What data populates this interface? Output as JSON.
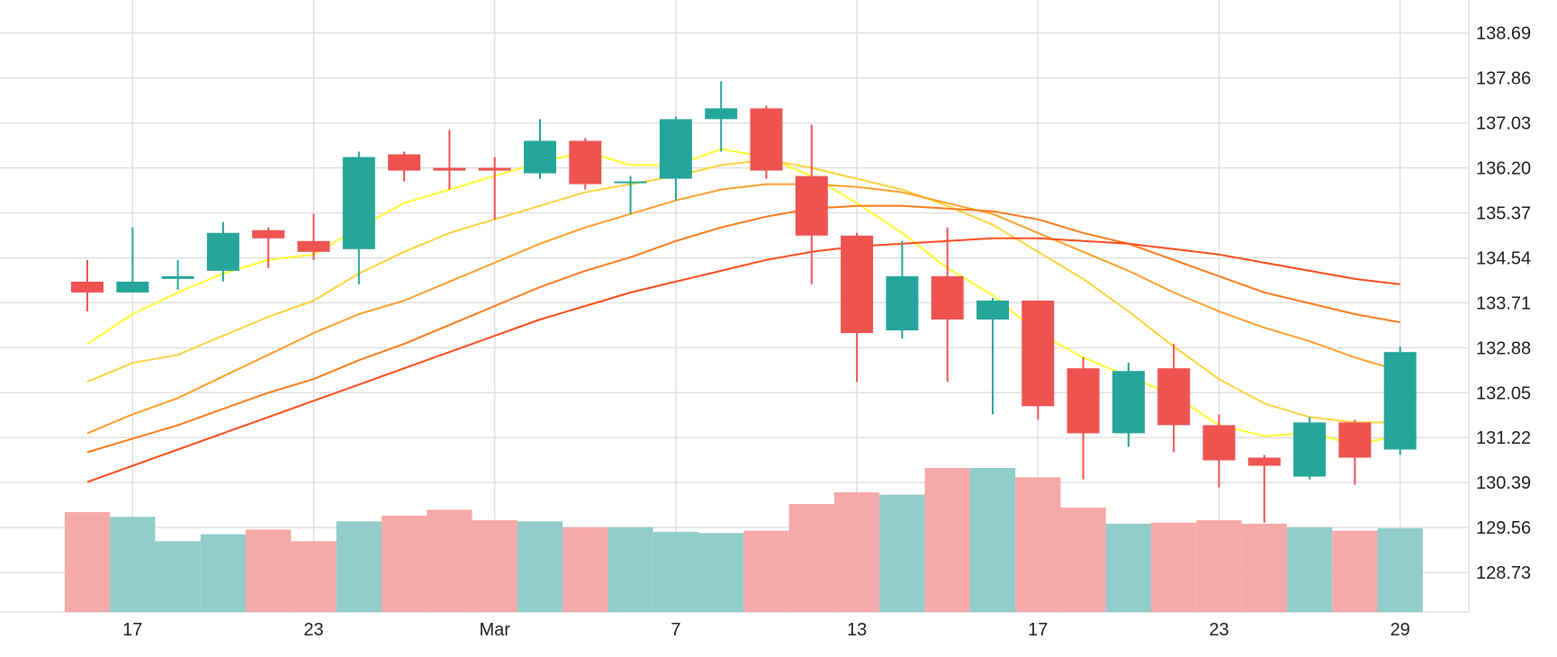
{
  "chart_data": {
    "type": "candlestick",
    "title": "",
    "xlabel": "",
    "ylabel": "",
    "ylim": [
      128.0,
      139.3
    ],
    "y_ticks": [
      "128.73",
      "129.56",
      "130.39",
      "131.22",
      "132.05",
      "132.88",
      "133.71",
      "134.54",
      "135.37",
      "136.20",
      "137.03",
      "137.86",
      "138.69"
    ],
    "x_tick_labels": [
      {
        "label": "17",
        "index": 1
      },
      {
        "label": "23",
        "index": 5
      },
      {
        "label": "Mar",
        "index": 9
      },
      {
        "label": "7",
        "index": 13
      },
      {
        "label": "13",
        "index": 17
      },
      {
        "label": "17",
        "index": 21
      },
      {
        "label": "23",
        "index": 25
      },
      {
        "label": "29",
        "index": 29
      }
    ],
    "grid": true,
    "colors": {
      "up": "#26a69a",
      "down": "#ef5350",
      "up_volume": "#92cdcc",
      "down_volume": "#f5a9a8",
      "grid": "#e0e0e0"
    },
    "candles": [
      {
        "open": 134.1,
        "high": 134.5,
        "low": 133.55,
        "close": 133.9,
        "volume": 0.86
      },
      {
        "open": 133.9,
        "high": 135.1,
        "low": 133.9,
        "close": 134.1,
        "volume": 0.82
      },
      {
        "open": 134.15,
        "high": 134.5,
        "low": 133.95,
        "close": 134.2,
        "volume": 0.61
      },
      {
        "open": 134.3,
        "high": 135.2,
        "low": 134.1,
        "close": 135.0,
        "volume": 0.67
      },
      {
        "open": 135.05,
        "high": 135.1,
        "low": 134.35,
        "close": 134.9,
        "volume": 0.71
      },
      {
        "open": 134.85,
        "high": 135.35,
        "low": 134.5,
        "close": 134.65,
        "volume": 0.61
      },
      {
        "open": 134.7,
        "high": 136.5,
        "low": 134.05,
        "close": 136.4,
        "volume": 0.78
      },
      {
        "open": 136.45,
        "high": 136.5,
        "low": 135.95,
        "close": 136.15,
        "volume": 0.83
      },
      {
        "open": 136.2,
        "high": 136.9,
        "low": 135.8,
        "close": 136.15,
        "volume": 0.88
      },
      {
        "open": 136.2,
        "high": 136.4,
        "low": 135.25,
        "close": 136.15,
        "volume": 0.79
      },
      {
        "open": 136.1,
        "high": 137.1,
        "low": 136.0,
        "close": 136.7,
        "volume": 0.78
      },
      {
        "open": 136.7,
        "high": 136.75,
        "low": 135.8,
        "close": 135.9,
        "volume": 0.73
      },
      {
        "open": 135.95,
        "high": 136.05,
        "low": 135.35,
        "close": 135.95,
        "volume": 0.73
      },
      {
        "open": 136.0,
        "high": 137.15,
        "low": 135.6,
        "close": 137.1,
        "volume": 0.69
      },
      {
        "open": 137.1,
        "high": 137.8,
        "low": 136.5,
        "close": 137.3,
        "volume": 0.68
      },
      {
        "open": 137.3,
        "high": 137.35,
        "low": 136.0,
        "close": 136.15,
        "volume": 0.7
      },
      {
        "open": 136.05,
        "high": 137.0,
        "low": 134.05,
        "close": 134.95,
        "volume": 0.93
      },
      {
        "open": 134.95,
        "high": 135.0,
        "low": 132.25,
        "close": 133.15,
        "volume": 1.03
      },
      {
        "open": 133.2,
        "high": 134.85,
        "low": 133.05,
        "close": 134.2,
        "volume": 1.01
      },
      {
        "open": 134.2,
        "high": 135.1,
        "low": 132.25,
        "close": 133.4,
        "volume": 1.24
      },
      {
        "open": 133.4,
        "high": 133.8,
        "low": 131.65,
        "close": 133.75,
        "volume": 1.24
      },
      {
        "open": 133.75,
        "high": 133.75,
        "low": 131.55,
        "close": 131.8,
        "volume": 1.16
      },
      {
        "open": 132.5,
        "high": 132.7,
        "low": 130.45,
        "close": 131.3,
        "volume": 0.9
      },
      {
        "open": 131.3,
        "high": 132.6,
        "low": 131.05,
        "close": 132.45,
        "volume": 0.76
      },
      {
        "open": 132.5,
        "high": 132.95,
        "low": 130.95,
        "close": 131.45,
        "volume": 0.77
      },
      {
        "open": 131.45,
        "high": 131.65,
        "low": 130.3,
        "close": 130.8,
        "volume": 0.79
      },
      {
        "open": 130.85,
        "high": 130.9,
        "low": 129.65,
        "close": 130.7,
        "volume": 0.76
      },
      {
        "open": 130.5,
        "high": 131.6,
        "low": 130.45,
        "close": 131.5,
        "volume": 0.73
      },
      {
        "open": 131.5,
        "high": 131.55,
        "low": 130.35,
        "close": 130.85,
        "volume": 0.7
      },
      {
        "open": 131.0,
        "high": 132.9,
        "low": 130.9,
        "close": 132.8,
        "volume": 0.72
      }
    ],
    "series": [
      {
        "color": "#ffff2a",
        "values": [
          132.95,
          133.5,
          133.9,
          134.25,
          134.5,
          134.6,
          135.1,
          135.55,
          135.8,
          136.05,
          136.3,
          136.5,
          136.25,
          136.25,
          136.55,
          136.4,
          136.05,
          135.55,
          135.0,
          134.35,
          133.85,
          133.15,
          132.7,
          132.35,
          132.0,
          131.45,
          131.25,
          131.3,
          131.1,
          131.25
        ]
      },
      {
        "color": "#ffd23c",
        "values": [
          132.25,
          132.6,
          132.75,
          133.1,
          133.45,
          133.75,
          134.25,
          134.65,
          135.0,
          135.25,
          135.5,
          135.75,
          135.9,
          136.05,
          136.25,
          136.35,
          136.2,
          136.0,
          135.8,
          135.5,
          135.15,
          134.65,
          134.15,
          133.55,
          132.9,
          132.3,
          131.85,
          131.6,
          131.5,
          131.5
        ]
      },
      {
        "color": "#ff9f2a",
        "values": [
          131.3,
          131.65,
          131.95,
          132.35,
          132.75,
          133.15,
          133.5,
          133.75,
          134.1,
          134.45,
          134.8,
          135.1,
          135.35,
          135.6,
          135.8,
          135.9,
          135.9,
          135.85,
          135.75,
          135.55,
          135.35,
          135.0,
          134.65,
          134.3,
          133.9,
          133.55,
          133.25,
          133.0,
          132.7,
          132.45
        ]
      },
      {
        "color": "#ff7a1a",
        "values": [
          130.95,
          131.2,
          131.45,
          131.75,
          132.05,
          132.3,
          132.65,
          132.95,
          133.3,
          133.65,
          134.0,
          134.3,
          134.55,
          134.85,
          135.1,
          135.3,
          135.45,
          135.5,
          135.5,
          135.45,
          135.4,
          135.25,
          135.0,
          134.8,
          134.5,
          134.2,
          133.9,
          133.7,
          133.5,
          133.35
        ]
      },
      {
        "color": "#ff4a1a",
        "values": [
          130.4,
          130.7,
          131.0,
          131.3,
          131.6,
          131.9,
          132.2,
          132.5,
          132.8,
          133.1,
          133.4,
          133.65,
          133.9,
          134.1,
          134.3,
          134.5,
          134.65,
          134.75,
          134.8,
          134.85,
          134.9,
          134.9,
          134.85,
          134.8,
          134.7,
          134.6,
          134.45,
          134.3,
          134.15,
          134.05
        ]
      }
    ]
  }
}
